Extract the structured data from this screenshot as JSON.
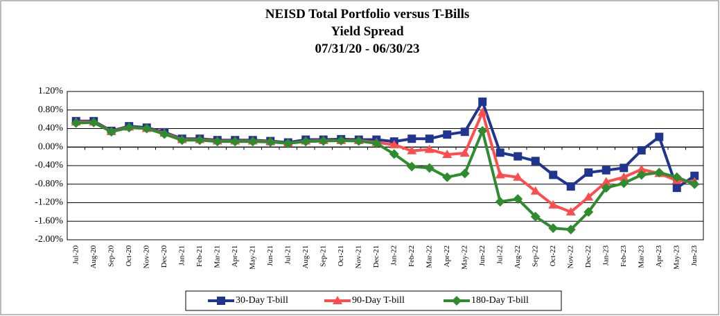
{
  "chart_data": {
    "type": "line",
    "title": [
      "NEISD Total Portfolio versus T-Bills",
      "Yield Spread",
      "07/31/20 - 06/30/23"
    ],
    "categories": [
      "Jul-20",
      "Aug-20",
      "Sep-20",
      "Oct-20",
      "Nov-20",
      "Dec-20",
      "Jan-21",
      "Feb-21",
      "Mar-21",
      "Apr-21",
      "May-21",
      "Jun-21",
      "Jul-21",
      "Aug-21",
      "Sep-21",
      "Oct-21",
      "Nov-21",
      "Dec-21",
      "Jan-22",
      "Feb-22",
      "Mar-22",
      "Apr-22",
      "May-22",
      "Jun-22",
      "Jul-22",
      "Aug-22",
      "Sep-22",
      "Oct-22",
      "Nov-22",
      "Dec-22",
      "Jan-23",
      "Feb-23",
      "Mar-23",
      "Apr-23",
      "May-23",
      "Jun-23"
    ],
    "series": [
      {
        "name": "30-Day T-bill",
        "color": "#1f3590",
        "marker": "square",
        "values": [
          0.56,
          0.56,
          0.35,
          0.45,
          0.42,
          0.32,
          0.18,
          0.18,
          0.15,
          0.15,
          0.15,
          0.13,
          0.1,
          0.16,
          0.16,
          0.17,
          0.16,
          0.16,
          0.12,
          0.18,
          0.18,
          0.27,
          0.33,
          0.98,
          -0.12,
          -0.2,
          -0.3,
          -0.6,
          -0.85,
          -0.55,
          -0.5,
          -0.45,
          -0.07,
          0.22,
          -0.88,
          -0.62
        ]
      },
      {
        "name": "90-Day T-bill",
        "color": "#ff4d4d",
        "marker": "triangle",
        "values": [
          0.54,
          0.54,
          0.34,
          0.43,
          0.4,
          0.3,
          0.16,
          0.16,
          0.13,
          0.13,
          0.13,
          0.12,
          0.08,
          0.13,
          0.14,
          0.14,
          0.14,
          0.1,
          0.05,
          -0.08,
          -0.05,
          -0.16,
          -0.13,
          0.75,
          -0.6,
          -0.65,
          -0.95,
          -1.25,
          -1.4,
          -1.08,
          -0.75,
          -0.65,
          -0.48,
          -0.57,
          -0.72,
          -0.75
        ]
      },
      {
        "name": "180-Day T-bill",
        "color": "#2e8b2e",
        "marker": "diamond",
        "values": [
          0.52,
          0.53,
          0.33,
          0.42,
          0.4,
          0.28,
          0.15,
          0.15,
          0.12,
          0.12,
          0.12,
          0.11,
          0.08,
          0.12,
          0.13,
          0.14,
          0.13,
          0.08,
          -0.15,
          -0.42,
          -0.45,
          -0.65,
          -0.57,
          0.35,
          -1.18,
          -1.12,
          -1.5,
          -1.75,
          -1.78,
          -1.4,
          -0.88,
          -0.78,
          -0.6,
          -0.55,
          -0.65,
          -0.8
        ]
      }
    ],
    "ylim": [
      -2.0,
      1.2
    ],
    "yticks": [
      {
        "value": -2.0,
        "label": "-2.00%"
      },
      {
        "value": -1.6,
        "label": "-1.60%"
      },
      {
        "value": -1.2,
        "label": "-1.20%"
      },
      {
        "value": -0.8,
        "label": "-0.80%"
      },
      {
        "value": -0.4,
        "label": "-0.40%"
      },
      {
        "value": 0,
        "label": "0.00%"
      },
      {
        "value": 0.4,
        "label": "0.40%"
      },
      {
        "value": 0.8,
        "label": "0.80%"
      },
      {
        "value": 1.2,
        "label": "1.20%"
      }
    ],
    "grid": true,
    "legend": "bottom"
  }
}
